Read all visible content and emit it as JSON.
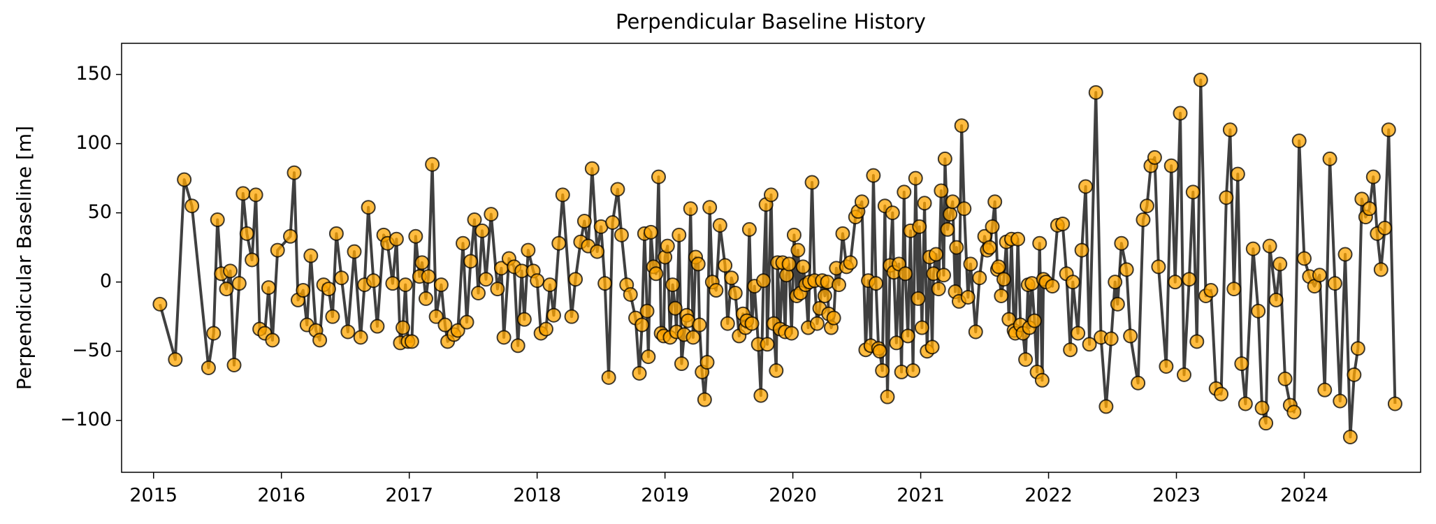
{
  "chart_data": {
    "type": "line",
    "title": "Perpendicular Baseline History",
    "y_label": "Perpendicular Baseline [m]",
    "xlim": [
      2014.75,
      2024.91
    ],
    "xticks": [
      2015,
      2016,
      2017,
      2018,
      2019,
      2020,
      2021,
      2022,
      2023,
      2024
    ],
    "ylim": [
      -137.5,
      172.5
    ],
    "yticks": [
      {
        "value": -100,
        "label": "−100"
      },
      {
        "value": -50,
        "label": "−50"
      },
      0,
      50,
      100,
      150
    ],
    "grid": false,
    "line_color": "#404040",
    "marker_color": "#ffa500",
    "marker_edge_color": "#000000",
    "x": [
      2015.05,
      2015.17,
      2015.24,
      2015.3,
      2015.43,
      2015.47,
      2015.5,
      2015.53,
      2015.57,
      2015.6,
      2015.63,
      2015.67,
      2015.7,
      2015.73,
      2015.77,
      2015.8,
      2015.83,
      2015.87,
      2015.9,
      2015.93,
      2015.97,
      2016.07,
      2016.1,
      2016.13,
      2016.17,
      2016.2,
      2016.23,
      2016.27,
      2016.3,
      2016.33,
      2016.37,
      2016.4,
      2016.43,
      2016.47,
      2016.52,
      2016.57,
      2016.62,
      2016.65,
      2016.68,
      2016.72,
      2016.75,
      2016.8,
      2016.83,
      2016.87,
      2016.9,
      2016.93,
      2016.95,
      2016.97,
      2016.99,
      2017.02,
      2017.05,
      2017.08,
      2017.1,
      2017.13,
      2017.15,
      2017.18,
      2017.21,
      2017.25,
      2017.28,
      2017.3,
      2017.35,
      2017.38,
      2017.42,
      2017.45,
      2017.48,
      2017.51,
      2017.54,
      2017.57,
      2017.6,
      2017.64,
      2017.69,
      2017.72,
      2017.74,
      2017.78,
      2017.82,
      2017.85,
      2017.88,
      2017.9,
      2017.93,
      2017.97,
      2018.0,
      2018.03,
      2018.07,
      2018.1,
      2018.13,
      2018.17,
      2018.2,
      2018.27,
      2018.3,
      2018.34,
      2018.37,
      2018.4,
      2018.43,
      2018.47,
      2018.5,
      2018.53,
      2018.56,
      2018.59,
      2018.63,
      2018.66,
      2018.7,
      2018.73,
      2018.77,
      2018.8,
      2018.82,
      2018.84,
      2018.86,
      2018.87,
      2018.89,
      2018.91,
      2018.93,
      2018.95,
      2018.97,
      2018.99,
      2019.0,
      2019.02,
      2019.04,
      2019.06,
      2019.08,
      2019.09,
      2019.11,
      2019.13,
      2019.15,
      2019.17,
      2019.18,
      2019.2,
      2019.22,
      2019.24,
      2019.26,
      2019.27,
      2019.29,
      2019.31,
      2019.33,
      2019.35,
      2019.37,
      2019.4,
      2019.43,
      2019.47,
      2019.49,
      2019.52,
      2019.55,
      2019.58,
      2019.61,
      2019.63,
      2019.64,
      2019.66,
      2019.68,
      2019.7,
      2019.73,
      2019.75,
      2019.77,
      2019.79,
      2019.8,
      2019.83,
      2019.85,
      2019.87,
      2019.88,
      2019.9,
      2019.92,
      2019.94,
      2019.95,
      2019.97,
      2019.99,
      2020.01,
      2020.03,
      2020.04,
      2020.06,
      2020.08,
      2020.1,
      2020.12,
      2020.13,
      2020.15,
      2020.17,
      2020.19,
      2020.21,
      2020.23,
      2020.25,
      2020.27,
      2020.28,
      2020.3,
      2020.32,
      2020.34,
      2020.36,
      2020.39,
      2020.42,
      2020.45,
      2020.49,
      2020.51,
      2020.54,
      2020.57,
      2020.59,
      2020.61,
      2020.63,
      2020.65,
      2020.67,
      2020.68,
      2020.7,
      2020.72,
      2020.74,
      2020.76,
      2020.78,
      2020.79,
      2020.81,
      2020.83,
      2020.85,
      2020.87,
      2020.88,
      2020.9,
      2020.92,
      2020.94,
      2020.96,
      2020.98,
      2020.99,
      2021.01,
      2021.03,
      2021.05,
      2021.07,
      2021.09,
      2021.1,
      2021.12,
      2021.14,
      2021.16,
      2021.18,
      2021.19,
      2021.21,
      2021.23,
      2021.25,
      2021.27,
      2021.28,
      2021.3,
      2021.32,
      2021.34,
      2021.37,
      2021.39,
      2021.43,
      2021.46,
      2021.5,
      2021.52,
      2021.54,
      2021.56,
      2021.58,
      2021.6,
      2021.61,
      2021.63,
      2021.65,
      2021.67,
      2021.69,
      2021.71,
      2021.73,
      2021.74,
      2021.76,
      2021.78,
      2021.8,
      2021.82,
      2021.84,
      2021.85,
      2021.87,
      2021.89,
      2021.91,
      2021.93,
      2021.95,
      2021.96,
      2021.98,
      2022.03,
      2022.07,
      2022.11,
      2022.14,
      2022.17,
      2022.19,
      2022.23,
      2022.26,
      2022.29,
      2022.32,
      2022.37,
      2022.41,
      2022.45,
      2022.49,
      2022.52,
      2022.54,
      2022.57,
      2022.61,
      2022.64,
      2022.7,
      2022.74,
      2022.77,
      2022.8,
      2022.83,
      2022.86,
      2022.92,
      2022.96,
      2022.99,
      2023.03,
      2023.06,
      2023.1,
      2023.13,
      2023.16,
      2023.19,
      2023.23,
      2023.27,
      2023.31,
      2023.35,
      2023.39,
      2023.42,
      2023.45,
      2023.48,
      2023.51,
      2023.54,
      2023.6,
      2023.64,
      2023.67,
      2023.7,
      2023.73,
      2023.78,
      2023.81,
      2023.85,
      2023.89,
      2023.92,
      2023.96,
      2024.0,
      2024.04,
      2024.08,
      2024.12,
      2024.16,
      2024.2,
      2024.24,
      2024.28,
      2024.32,
      2024.36,
      2024.39,
      2024.42,
      2024.45,
      2024.48,
      2024.51,
      2024.54,
      2024.57,
      2024.6,
      2024.63,
      2024.66,
      2024.71
    ],
    "values": [
      -16,
      -56,
      74,
      55,
      -62,
      -37,
      45,
      6,
      -5,
      8,
      -60,
      -1,
      64,
      35,
      16,
      63,
      -34,
      -37,
      -4,
      -42,
      23,
      33,
      79,
      -13,
      -6,
      -31,
      19,
      -35,
      -42,
      -2,
      -5,
      -25,
      35,
      3,
      -36,
      22,
      -40,
      -2,
      54,
      1,
      -32,
      34,
      28,
      -1,
      31,
      -44,
      -33,
      -2,
      -43,
      -43,
      33,
      4,
      14,
      -12,
      4,
      85,
      -25,
      -2,
      -31,
      -43,
      -38,
      -35,
      28,
      -29,
      15,
      45,
      -8,
      37,
      2,
      49,
      -5,
      10,
      -40,
      17,
      11,
      -46,
      8,
      -27,
      23,
      8,
      1,
      -37,
      -34,
      -2,
      -24,
      28,
      63,
      -25,
      2,
      29,
      44,
      26,
      82,
      22,
      40,
      -1,
      -69,
      43,
      67,
      34,
      -2,
      -9,
      -26,
      -66,
      -31,
      35,
      -21,
      -54,
      36,
      11,
      6,
      76,
      -37,
      -39,
      18,
      26,
      -40,
      -2,
      -19,
      -36,
      34,
      -59,
      -38,
      -24,
      -28,
      53,
      -40,
      18,
      13,
      -31,
      -65,
      -85,
      -58,
      54,
      0,
      -6,
      41,
      12,
      -30,
      3,
      -8,
      -39,
      -23,
      -33,
      -28,
      38,
      -30,
      -3,
      -45,
      -82,
      1,
      56,
      -45,
      63,
      -30,
      -64,
      14,
      -34,
      14,
      -36,
      5,
      13,
      -37,
      34,
      -10,
      23,
      -8,
      11,
      -2,
      -33,
      0,
      72,
      1,
      -30,
      -19,
      1,
      -10,
      0,
      -23,
      -33,
      -26,
      10,
      -2,
      35,
      11,
      14,
      47,
      51,
      58,
      -49,
      1,
      -46,
      77,
      -1,
      -48,
      -50,
      -64,
      55,
      -83,
      12,
      50,
      7,
      -44,
      13,
      -65,
      65,
      6,
      -39,
      37,
      -64,
      75,
      -12,
      40,
      -33,
      57,
      -50,
      18,
      -47,
      6,
      20,
      -5,
      66,
      5,
      89,
      38,
      49,
      58,
      -7,
      25,
      -14,
      113,
      53,
      -11,
      13,
      -36,
      3,
      33,
      23,
      25,
      40,
      58,
      9,
      11,
      -10,
      2,
      29,
      -27,
      31,
      -35,
      -37,
      31,
      -31,
      -37,
      -56,
      -2,
      -33,
      -1,
      -28,
      -65,
      28,
      -71,
      2,
      0,
      -3,
      41,
      42,
      6,
      -49,
      0,
      -37,
      23,
      69,
      -45,
      137,
      -40,
      -90,
      -41,
      0,
      -16,
      28,
      9,
      -39,
      -73,
      45,
      55,
      84,
      90,
      11,
      -61,
      84,
      0,
      122,
      -67,
      2,
      65,
      -43,
      146,
      -10,
      -6,
      -77,
      -81,
      61,
      110,
      -5,
      78,
      -59,
      -88,
      24,
      -21,
      -91,
      -102,
      26,
      -13,
      13,
      -70,
      -89,
      -94,
      102,
      17,
      4,
      -3,
      5,
      -78,
      89,
      -1,
      -86,
      20,
      -112,
      -67,
      -48,
      60,
      47,
      53,
      76,
      35,
      9,
      39,
      110,
      -88
    ]
  }
}
